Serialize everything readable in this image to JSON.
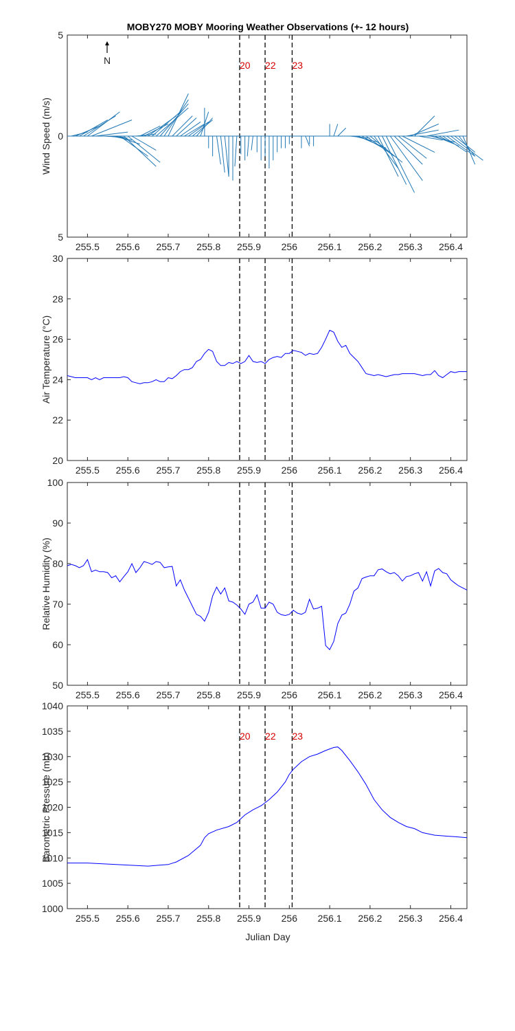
{
  "title": "MOBY270 MOBY Mooring Weather Observations (+- 12 hours)",
  "north_label": "N",
  "xlabel": "Julian Day",
  "x_range": [
    255.45,
    256.44
  ],
  "x_ticks": [
    255.5,
    255.6,
    255.7,
    255.8,
    255.9,
    256,
    256.1,
    256.2,
    256.3,
    256.4
  ],
  "x_tick_labels": [
    "255.5",
    "255.6",
    "255.7",
    "255.8",
    "255.9",
    "256",
    "256.1",
    "256.2",
    "256.3",
    "256.4"
  ],
  "markers": [
    {
      "x": 255.877,
      "label": "20"
    },
    {
      "x": 255.94,
      "label": "22"
    },
    {
      "x": 256.007,
      "label": "23"
    }
  ],
  "colors": {
    "wind": "#1f77b4",
    "series": "#0000ff",
    "marker_label": "#d40000",
    "marker_line": "#000000"
  },
  "chart_data": [
    {
      "type": "quiver",
      "ylabel": "Wind Speed (m/s)",
      "ylim": [
        -5,
        5
      ],
      "y_ticks": [
        5,
        0,
        -5
      ],
      "y_tick_labels": [
        "5",
        "0",
        "5"
      ],
      "marker_labels_shown": true,
      "vectors": [
        {
          "x": 255.45,
          "u": 0.0,
          "v": 0.0
        },
        {
          "x": 255.46,
          "u": 0.04,
          "v": 0.2
        },
        {
          "x": 255.47,
          "u": 0.06,
          "v": 0.5
        },
        {
          "x": 255.48,
          "u": 0.07,
          "v": 0.8
        },
        {
          "x": 255.49,
          "u": 0.08,
          "v": 1.0
        },
        {
          "x": 255.5,
          "u": 0.08,
          "v": 1.2
        },
        {
          "x": 255.51,
          "u": 0.1,
          "v": 0.8
        },
        {
          "x": 255.52,
          "u": 0.08,
          "v": 0.2
        },
        {
          "x": 255.53,
          "u": 0.06,
          "v": 0.0
        },
        {
          "x": 255.54,
          "u": 0.05,
          "v": -0.05
        },
        {
          "x": 255.55,
          "u": 0.05,
          "v": -0.1
        },
        {
          "x": 255.56,
          "u": 0.05,
          "v": -0.2
        },
        {
          "x": 255.57,
          "u": 0.06,
          "v": -0.4
        },
        {
          "x": 255.58,
          "u": 0.07,
          "v": -1.0
        },
        {
          "x": 255.59,
          "u": 0.08,
          "v": -1.5
        },
        {
          "x": 255.6,
          "u": 0.08,
          "v": -1.3
        },
        {
          "x": 255.61,
          "u": 0.06,
          "v": -0.7
        },
        {
          "x": 255.62,
          "u": 0.05,
          "v": 0.1
        },
        {
          "x": 255.63,
          "u": 0.05,
          "v": 0.5
        },
        {
          "x": 255.64,
          "u": 0.06,
          "v": 0.6
        },
        {
          "x": 255.65,
          "u": 0.07,
          "v": 1.0
        },
        {
          "x": 255.66,
          "u": 0.07,
          "v": 1.2
        },
        {
          "x": 255.67,
          "u": 0.08,
          "v": 1.4
        },
        {
          "x": 255.68,
          "u": 0.07,
          "v": 1.6
        },
        {
          "x": 255.69,
          "u": 0.06,
          "v": 1.8
        },
        {
          "x": 255.7,
          "u": 0.05,
          "v": 2.1
        },
        {
          "x": 255.71,
          "u": 0.05,
          "v": 1.0
        },
        {
          "x": 255.72,
          "u": 0.05,
          "v": 0.9
        },
        {
          "x": 255.73,
          "u": 0.05,
          "v": 0.7
        },
        {
          "x": 255.74,
          "u": 0.05,
          "v": 0.6
        },
        {
          "x": 255.75,
          "u": 0.05,
          "v": 0.7
        },
        {
          "x": 255.76,
          "u": 0.05,
          "v": 0.8
        },
        {
          "x": 255.77,
          "u": 0.04,
          "v": 0.9
        },
        {
          "x": 255.78,
          "u": 0.02,
          "v": 1.2
        },
        {
          "x": 255.79,
          "u": 0.0,
          "v": 1.4
        },
        {
          "x": 255.8,
          "u": 0.0,
          "v": -0.6
        },
        {
          "x": 255.81,
          "u": 0.0,
          "v": -1.0
        },
        {
          "x": 255.82,
          "u": 0.01,
          "v": -1.4
        },
        {
          "x": 255.83,
          "u": 0.01,
          "v": -1.8
        },
        {
          "x": 255.84,
          "u": 0.01,
          "v": -2.0
        },
        {
          "x": 255.85,
          "u": 0.0,
          "v": -2.0
        },
        {
          "x": 255.86,
          "u": 0.0,
          "v": -2.2
        },
        {
          "x": 255.87,
          "u": -0.005,
          "v": -1.5
        },
        {
          "x": 255.88,
          "u": 0.0,
          "v": -0.9
        },
        {
          "x": 255.89,
          "u": 0.0,
          "v": -1.2
        },
        {
          "x": 255.9,
          "u": -0.004,
          "v": -1.0
        },
        {
          "x": 255.91,
          "u": -0.004,
          "v": -0.7
        },
        {
          "x": 255.92,
          "u": 0.0,
          "v": -0.8
        },
        {
          "x": 255.93,
          "u": 0.0,
          "v": -1.2
        },
        {
          "x": 255.94,
          "u": 0.0,
          "v": -1.0
        },
        {
          "x": 255.95,
          "u": 0.0,
          "v": -1.6
        },
        {
          "x": 255.96,
          "u": 0.0,
          "v": -1.2
        },
        {
          "x": 255.97,
          "u": 0.0,
          "v": -0.8
        },
        {
          "x": 255.98,
          "u": 0.0,
          "v": -0.6
        },
        {
          "x": 255.99,
          "u": 0.0,
          "v": -0.6
        },
        {
          "x": 256.0,
          "u": 0.0,
          "v": -0.4
        },
        {
          "x": 256.01,
          "u": 0.0,
          "v": 0.0
        },
        {
          "x": 256.02,
          "u": 0.0,
          "v": 0.0
        },
        {
          "x": 256.03,
          "u": 0.0,
          "v": -0.6
        },
        {
          "x": 256.04,
          "u": 0.01,
          "v": -0.5
        },
        {
          "x": 256.05,
          "u": 0.0,
          "v": -0.4
        },
        {
          "x": 256.06,
          "u": 0.0,
          "v": -0.5
        },
        {
          "x": 256.07,
          "u": 0.0,
          "v": 0.0
        },
        {
          "x": 256.08,
          "u": 0.0,
          "v": 0.0
        },
        {
          "x": 256.09,
          "u": 0.0,
          "v": 0.0
        },
        {
          "x": 256.1,
          "u": 0.0,
          "v": 0.6
        },
        {
          "x": 256.11,
          "u": 0.01,
          "v": 0.6
        },
        {
          "x": 256.12,
          "u": 0.02,
          "v": 0.4
        },
        {
          "x": 256.13,
          "u": 0.03,
          "v": 0.0
        },
        {
          "x": 256.14,
          "u": 0.04,
          "v": 0.0
        },
        {
          "x": 256.15,
          "u": 0.05,
          "v": -0.1
        },
        {
          "x": 256.16,
          "u": 0.06,
          "v": -0.3
        },
        {
          "x": 256.17,
          "u": 0.07,
          "v": -0.6
        },
        {
          "x": 256.18,
          "u": 0.07,
          "v": -0.8
        },
        {
          "x": 256.19,
          "u": 0.07,
          "v": -1.0
        },
        {
          "x": 256.2,
          "u": 0.08,
          "v": -1.3
        },
        {
          "x": 256.21,
          "u": 0.06,
          "v": -1.6
        },
        {
          "x": 256.22,
          "u": 0.05,
          "v": -2.0
        },
        {
          "x": 256.23,
          "u": 0.06,
          "v": -2.4
        },
        {
          "x": 256.24,
          "u": 0.07,
          "v": -2.8
        },
        {
          "x": 256.25,
          "u": 0.08,
          "v": -2.2
        },
        {
          "x": 256.26,
          "u": 0.07,
          "v": -1.4
        },
        {
          "x": 256.27,
          "u": 0.07,
          "v": -1.1
        },
        {
          "x": 256.28,
          "u": 0.08,
          "v": -0.8
        },
        {
          "x": 256.29,
          "u": 0.08,
          "v": 0.3
        },
        {
          "x": 256.3,
          "u": 0.07,
          "v": 0.6
        },
        {
          "x": 256.31,
          "u": 0.05,
          "v": 1.0
        },
        {
          "x": 256.32,
          "u": 0.06,
          "v": -0.2
        },
        {
          "x": 256.33,
          "u": 0.07,
          "v": 0.0
        },
        {
          "x": 256.34,
          "u": 0.08,
          "v": 0.3
        },
        {
          "x": 256.35,
          "u": 0.06,
          "v": -0.3
        },
        {
          "x": 256.36,
          "u": 0.05,
          "v": -0.4
        },
        {
          "x": 256.37,
          "u": 0.05,
          "v": -0.5
        },
        {
          "x": 256.38,
          "u": 0.06,
          "v": -0.8
        },
        {
          "x": 256.39,
          "u": 0.07,
          "v": -1.0
        },
        {
          "x": 256.4,
          "u": 0.08,
          "v": -1.2
        },
        {
          "x": 256.41,
          "u": 0.05,
          "v": -0.8
        },
        {
          "x": 256.42,
          "u": 0.04,
          "v": -1.0
        },
        {
          "x": 256.43,
          "u": 0.03,
          "v": -1.4
        }
      ]
    },
    {
      "type": "line",
      "ylabel": "Air Temperature (°C)",
      "ylim": [
        20,
        30
      ],
      "y_ticks": [
        20,
        22,
        24,
        26,
        28,
        30
      ],
      "y_tick_labels": [
        "20",
        "22",
        "24",
        "26",
        "28",
        "30"
      ],
      "marker_labels_shown": false,
      "x": [
        255.45,
        255.46,
        255.47,
        255.48,
        255.49,
        255.5,
        255.51,
        255.52,
        255.53,
        255.54,
        255.55,
        255.56,
        255.57,
        255.58,
        255.59,
        255.6,
        255.61,
        255.62,
        255.63,
        255.64,
        255.65,
        255.66,
        255.67,
        255.68,
        255.69,
        255.7,
        255.71,
        255.72,
        255.73,
        255.74,
        255.75,
        255.76,
        255.77,
        255.78,
        255.79,
        255.8,
        255.81,
        255.82,
        255.83,
        255.84,
        255.85,
        255.86,
        255.87,
        255.88,
        255.89,
        255.9,
        255.91,
        255.92,
        255.93,
        255.94,
        255.95,
        255.96,
        255.97,
        255.98,
        255.99,
        256.0,
        256.01,
        256.02,
        256.03,
        256.04,
        256.05,
        256.06,
        256.07,
        256.08,
        256.09,
        256.1,
        256.11,
        256.12,
        256.13,
        256.14,
        256.15,
        256.16,
        256.17,
        256.18,
        256.19,
        256.2,
        256.21,
        256.22,
        256.23,
        256.24,
        256.25,
        256.26,
        256.27,
        256.28,
        256.29,
        256.3,
        256.31,
        256.32,
        256.33,
        256.34,
        256.35,
        256.36,
        256.37,
        256.38,
        256.39,
        256.4,
        256.41,
        256.42,
        256.43,
        256.44
      ],
      "y": [
        24.2,
        24.15,
        24.1,
        24.1,
        24.1,
        24.1,
        24.0,
        24.1,
        24.0,
        24.1,
        24.1,
        24.1,
        24.1,
        24.1,
        24.15,
        24.1,
        23.9,
        23.85,
        23.8,
        23.85,
        23.85,
        23.9,
        24.0,
        23.9,
        23.9,
        24.1,
        24.05,
        24.2,
        24.4,
        24.5,
        24.5,
        24.6,
        24.9,
        25.0,
        25.3,
        25.5,
        25.4,
        24.9,
        24.7,
        24.7,
        24.85,
        24.8,
        24.9,
        24.8,
        24.9,
        25.2,
        24.9,
        24.85,
        24.9,
        24.8,
        25.0,
        25.1,
        25.15,
        25.1,
        25.3,
        25.3,
        25.45,
        25.4,
        25.35,
        25.2,
        25.3,
        25.25,
        25.3,
        25.6,
        26.0,
        26.45,
        26.35,
        25.9,
        25.6,
        25.7,
        25.3,
        25.1,
        24.9,
        24.6,
        24.3,
        24.25,
        24.2,
        24.25,
        24.2,
        24.15,
        24.2,
        24.25,
        24.25,
        24.3,
        24.3,
        24.3,
        24.3,
        24.25,
        24.2,
        24.25,
        24.25,
        24.45,
        24.2,
        24.1,
        24.25,
        24.4,
        24.35,
        24.4,
        24.4,
        24.4
      ]
    },
    {
      "type": "line",
      "ylabel": "Relative Humidity (%)",
      "ylim": [
        50,
        100
      ],
      "y_ticks": [
        50,
        60,
        70,
        80,
        90,
        100
      ],
      "y_tick_labels": [
        "50",
        "60",
        "70",
        "80",
        "90",
        "100"
      ],
      "marker_labels_shown": false,
      "x": [
        255.45,
        255.46,
        255.47,
        255.48,
        255.49,
        255.5,
        255.51,
        255.52,
        255.53,
        255.54,
        255.55,
        255.56,
        255.57,
        255.58,
        255.59,
        255.6,
        255.61,
        255.62,
        255.63,
        255.64,
        255.65,
        255.66,
        255.67,
        255.68,
        255.69,
        255.7,
        255.71,
        255.72,
        255.73,
        255.74,
        255.75,
        255.76,
        255.77,
        255.78,
        255.79,
        255.8,
        255.81,
        255.82,
        255.83,
        255.84,
        255.85,
        255.86,
        255.87,
        255.88,
        255.89,
        255.9,
        255.91,
        255.92,
        255.93,
        255.94,
        255.95,
        255.96,
        255.97,
        255.98,
        255.99,
        256.0,
        256.01,
        256.02,
        256.03,
        256.04,
        256.05,
        256.06,
        256.07,
        256.08,
        256.09,
        256.1,
        256.11,
        256.12,
        256.13,
        256.14,
        256.15,
        256.16,
        256.17,
        256.18,
        256.19,
        256.2,
        256.21,
        256.22,
        256.23,
        256.24,
        256.25,
        256.26,
        256.27,
        256.28,
        256.29,
        256.3,
        256.31,
        256.32,
        256.33,
        256.34,
        256.35,
        256.36,
        256.37,
        256.38,
        256.39,
        256.4,
        256.41,
        256.42,
        256.43,
        256.44
      ],
      "y": [
        79.5,
        79.8,
        79.5,
        79.0,
        79.5,
        81.0,
        78.0,
        78.4,
        78.0,
        78.0,
        77.8,
        76.5,
        77.0,
        75.5,
        76.8,
        78.0,
        80.0,
        77.8,
        79.0,
        80.5,
        80.2,
        79.8,
        80.5,
        80.3,
        79.0,
        79.2,
        79.3,
        74.5,
        76.0,
        73.5,
        71.5,
        69.5,
        67.5,
        67.0,
        65.8,
        68.0,
        72.0,
        74.2,
        72.5,
        74.0,
        70.8,
        70.5,
        69.8,
        68.8,
        67.5,
        70.0,
        70.5,
        72.3,
        69.0,
        69.0,
        70.5,
        70.0,
        68.0,
        67.4,
        67.2,
        67.5,
        68.5,
        67.8,
        67.5,
        68.0,
        71.2,
        68.8,
        69.0,
        69.5,
        59.8,
        58.8,
        60.8,
        65.2,
        67.3,
        67.8,
        70.0,
        73.2,
        74.0,
        76.3,
        76.7,
        77.0,
        77.0,
        78.5,
        78.7,
        78.0,
        77.5,
        77.8,
        77.0,
        75.7,
        76.8,
        77.0,
        77.5,
        77.8,
        75.7,
        78.0,
        74.5,
        78.2,
        78.8,
        77.8,
        77.5,
        76.0,
        75.2,
        74.5,
        74.0,
        73.5
      ]
    },
    {
      "type": "line",
      "ylabel": "Barometric Pressure (mb)",
      "ylim": [
        1000,
        1040
      ],
      "y_ticks": [
        1000,
        1005,
        1010,
        1015,
        1020,
        1025,
        1030,
        1035,
        1040
      ],
      "y_tick_labels": [
        "1000",
        "1005",
        "1010",
        "1015",
        "1020",
        "1025",
        "1030",
        "1035",
        "1040"
      ],
      "marker_labels_shown": true,
      "x": [
        255.45,
        255.5,
        255.55,
        255.6,
        255.65,
        255.68,
        255.7,
        255.72,
        255.75,
        255.78,
        255.79,
        255.8,
        255.82,
        255.85,
        255.87,
        255.89,
        255.91,
        255.93,
        255.95,
        255.97,
        255.99,
        256.0,
        256.01,
        256.03,
        256.05,
        256.07,
        256.09,
        256.11,
        256.12,
        256.13,
        256.15,
        256.17,
        256.19,
        256.21,
        256.23,
        256.25,
        256.27,
        256.29,
        256.31,
        256.33,
        256.36,
        256.39,
        256.41,
        256.44
      ],
      "y": [
        1009,
        1009,
        1008.8,
        1008.6,
        1008.4,
        1008.6,
        1008.7,
        1009.2,
        1010.5,
        1012.5,
        1014.0,
        1014.8,
        1015.5,
        1016.2,
        1017.0,
        1018.5,
        1019.5,
        1020.3,
        1021.5,
        1023.0,
        1025.0,
        1026.5,
        1027.5,
        1029.0,
        1030.0,
        1030.5,
        1031.2,
        1031.8,
        1031.9,
        1031.2,
        1029.2,
        1027.0,
        1024.5,
        1021.5,
        1019.5,
        1018.0,
        1017.0,
        1016.2,
        1015.8,
        1015.0,
        1014.5,
        1014.3,
        1014.2,
        1014.0
      ]
    }
  ]
}
